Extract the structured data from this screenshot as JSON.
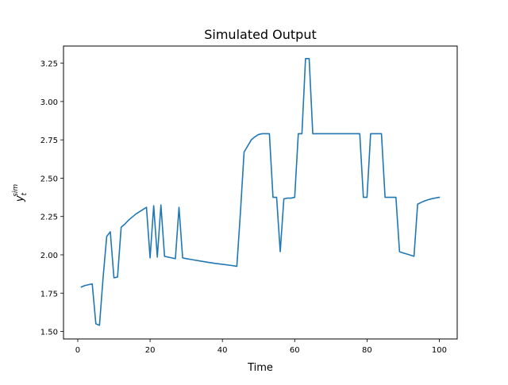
{
  "chart_data": {
    "type": "line",
    "title": "Simulated Output",
    "xlabel": "Time",
    "ylabel_main": "y",
    "ylabel_sub": "t",
    "ylabel_sup": "sim",
    "xlim": [
      -3.95,
      104.95
    ],
    "ylim": [
      1.451,
      3.362
    ],
    "x_ticks": [
      0,
      20,
      40,
      60,
      80,
      100
    ],
    "y_ticks": [
      1.5,
      1.75,
      2.0,
      2.25,
      2.5,
      2.75,
      3.0,
      3.25
    ],
    "x_tick_labels": [
      "0",
      "20",
      "40",
      "60",
      "80",
      "100"
    ],
    "y_tick_labels": [
      "1.50",
      "1.75",
      "2.00",
      "2.25",
      "2.50",
      "2.75",
      "3.00",
      "3.25"
    ],
    "grid": false,
    "series": [
      {
        "color": "#1f77b4",
        "x": [
          1,
          2,
          3,
          4,
          5,
          6,
          7,
          8,
          9,
          10,
          11,
          12,
          13,
          14,
          15,
          16,
          17,
          18,
          19,
          20,
          21,
          22,
          23,
          24,
          25,
          26,
          27,
          28,
          29,
          30,
          32,
          34,
          36,
          38,
          40,
          42,
          44,
          45,
          46,
          47,
          48,
          49,
          50,
          51,
          52,
          53,
          54,
          55,
          56,
          57,
          58,
          59,
          60,
          61,
          62,
          63,
          64,
          65,
          66,
          68,
          70,
          72,
          74,
          76,
          78,
          79,
          80,
          81,
          82,
          83,
          84,
          85,
          86,
          87,
          88,
          89,
          90,
          91,
          92,
          93,
          94,
          95,
          96,
          97,
          98,
          99,
          100
        ],
        "y": [
          1.79,
          1.8,
          1.805,
          1.81,
          1.55,
          1.54,
          1.85,
          2.12,
          2.15,
          1.85,
          1.855,
          2.18,
          2.2,
          2.225,
          2.245,
          2.265,
          2.28,
          2.295,
          2.31,
          1.98,
          2.32,
          1.985,
          2.325,
          1.99,
          1.985,
          1.98,
          1.975,
          2.31,
          1.98,
          1.975,
          1.967,
          1.959,
          1.951,
          1.944,
          1.938,
          1.932,
          1.925,
          2.28,
          2.67,
          2.71,
          2.75,
          2.77,
          2.785,
          2.79,
          2.79,
          2.79,
          2.375,
          2.375,
          2.02,
          2.365,
          2.37,
          2.37,
          2.375,
          2.79,
          2.79,
          3.28,
          3.28,
          2.79,
          2.79,
          2.79,
          2.79,
          2.79,
          2.79,
          2.79,
          2.79,
          2.375,
          2.375,
          2.79,
          2.79,
          2.79,
          2.79,
          2.375,
          2.375,
          2.375,
          2.375,
          2.02,
          2.012,
          2.005,
          1.998,
          1.99,
          2.33,
          2.342,
          2.352,
          2.36,
          2.366,
          2.371,
          2.375
        ]
      }
    ]
  }
}
